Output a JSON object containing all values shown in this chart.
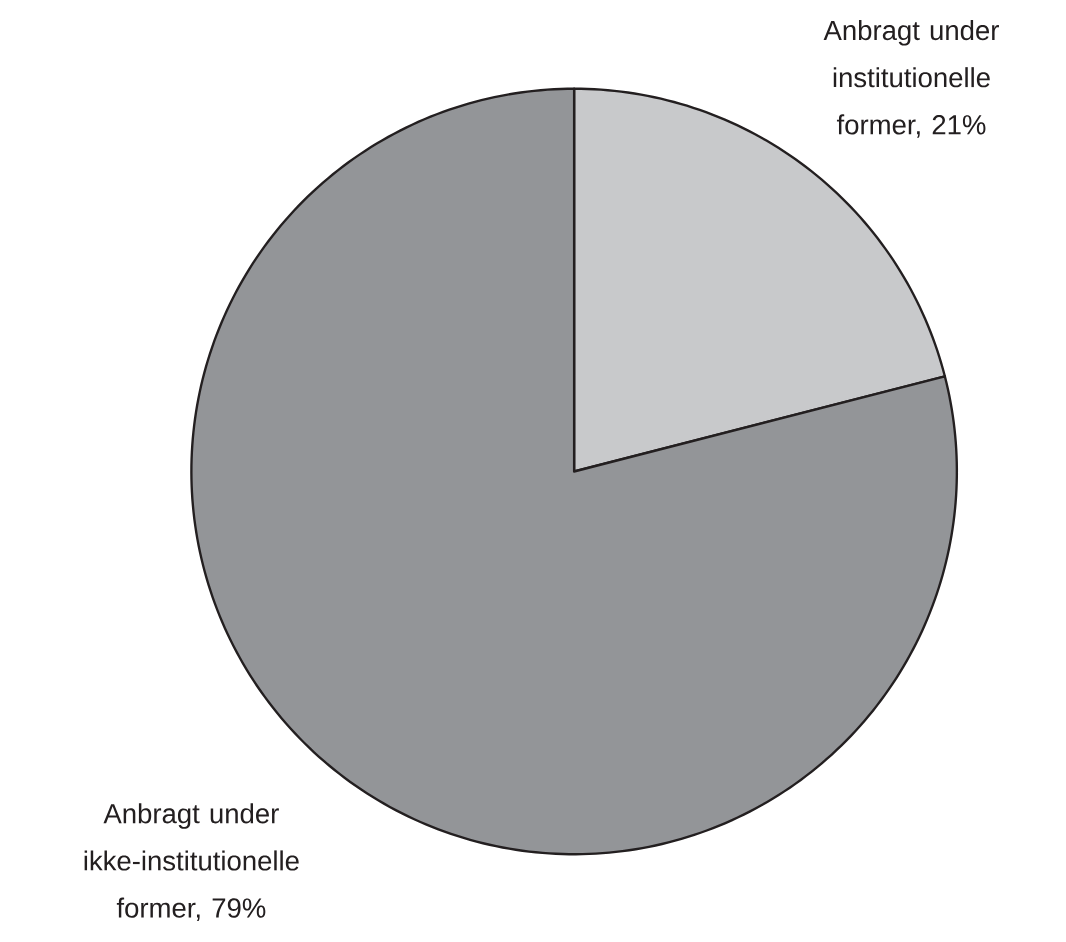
{
  "chart_data": {
    "type": "pie",
    "categories": [
      "Anbragt under institutionelle former, 21%",
      "Anbragt under ikke-institutionelle former, 79%"
    ],
    "values": [
      21,
      79
    ],
    "colors": [
      "#c8c9cb",
      "#939598"
    ]
  }
}
